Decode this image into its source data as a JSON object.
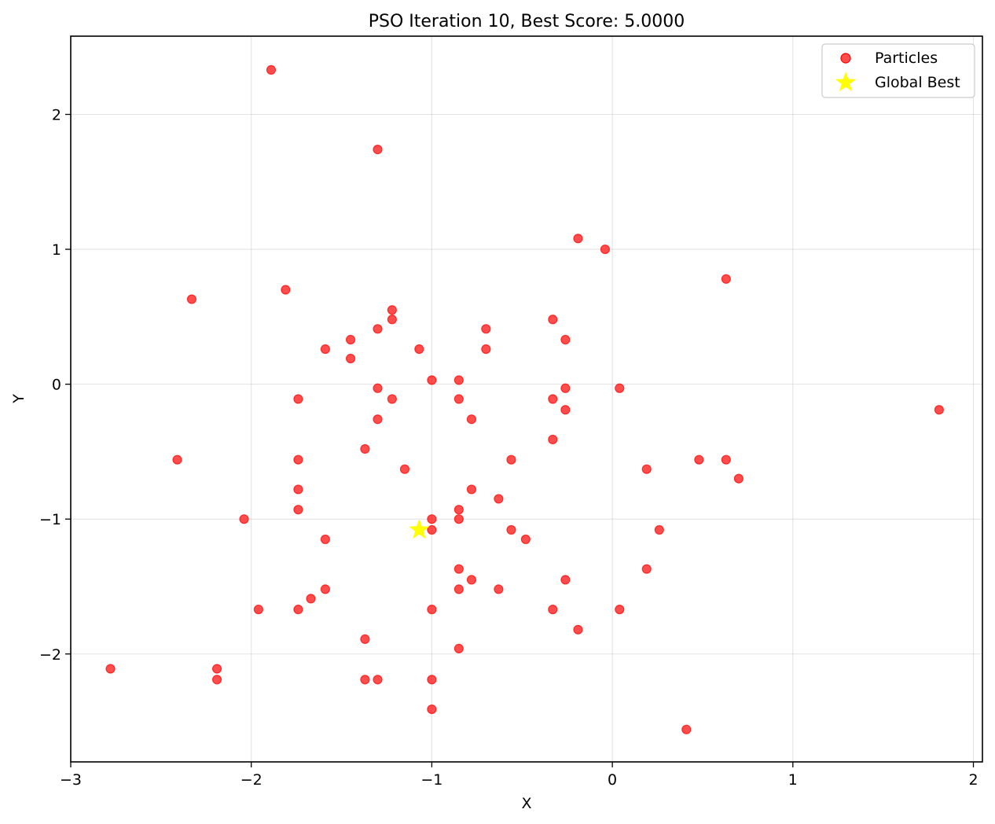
{
  "chart_data": {
    "type": "scatter",
    "title": "PSO Iteration 10, Best Score: 5.0000",
    "xlabel": "X",
    "ylabel": "Y",
    "xlim": [
      -3.0,
      2.05
    ],
    "ylim": [
      -2.8,
      2.58
    ],
    "xticks": [
      -3,
      -2,
      -1,
      0,
      1,
      2
    ],
    "yticks": [
      -2,
      -1,
      0,
      1,
      2
    ],
    "xtick_labels": [
      "−3",
      "−2",
      "−1",
      "0",
      "1",
      "2"
    ],
    "ytick_labels": [
      "−2",
      "−1",
      "0",
      "1",
      "2"
    ],
    "grid": true,
    "legend_position": "top-right",
    "colors": {
      "particles": "#ff0000",
      "global_best": "#ffff00"
    },
    "series": [
      {
        "name": "Particles",
        "marker": "circle",
        "points": [
          [
            -1.89,
            2.33
          ],
          [
            -1.3,
            1.74
          ],
          [
            -0.19,
            1.08
          ],
          [
            -0.04,
            1.0
          ],
          [
            0.63,
            0.78
          ],
          [
            -2.33,
            0.63
          ],
          [
            -1.81,
            0.7
          ],
          [
            -1.22,
            0.55
          ],
          [
            -1.22,
            0.48
          ],
          [
            -1.3,
            0.41
          ],
          [
            -1.45,
            0.33
          ],
          [
            -1.59,
            0.26
          ],
          [
            -1.45,
            0.19
          ],
          [
            -1.07,
            0.26
          ],
          [
            -0.7,
            0.41
          ],
          [
            -0.7,
            0.26
          ],
          [
            -0.33,
            0.48
          ],
          [
            -0.26,
            0.33
          ],
          [
            -1.0,
            0.03
          ],
          [
            -0.85,
            0.03
          ],
          [
            -1.3,
            -0.03
          ],
          [
            -1.22,
            -0.11
          ],
          [
            -1.3,
            -0.26
          ],
          [
            -1.74,
            -0.11
          ],
          [
            -0.85,
            -0.11
          ],
          [
            -0.78,
            -0.26
          ],
          [
            -0.33,
            -0.11
          ],
          [
            -0.26,
            -0.03
          ],
          [
            -0.26,
            -0.19
          ],
          [
            0.04,
            -0.03
          ],
          [
            1.81,
            -0.19
          ],
          [
            -0.33,
            -0.41
          ],
          [
            -0.56,
            -0.56
          ],
          [
            -1.15,
            -0.63
          ],
          [
            -1.37,
            -0.48
          ],
          [
            -1.74,
            -0.56
          ],
          [
            -2.41,
            -0.56
          ],
          [
            -1.74,
            -0.78
          ],
          [
            -1.74,
            -0.93
          ],
          [
            -2.04,
            -1.0
          ],
          [
            -1.59,
            -1.15
          ],
          [
            -0.78,
            -0.78
          ],
          [
            -0.63,
            -0.85
          ],
          [
            -0.85,
            -0.93
          ],
          [
            -0.85,
            -1.0
          ],
          [
            -1.0,
            -1.0
          ],
          [
            -1.0,
            -1.08
          ],
          [
            -0.56,
            -1.08
          ],
          [
            -0.48,
            -1.15
          ],
          [
            0.19,
            -0.63
          ],
          [
            0.48,
            -0.56
          ],
          [
            0.63,
            -0.56
          ],
          [
            0.7,
            -0.7
          ],
          [
            0.26,
            -1.08
          ],
          [
            0.19,
            -1.37
          ],
          [
            -0.85,
            -1.37
          ],
          [
            -0.85,
            -1.52
          ],
          [
            -0.78,
            -1.45
          ],
          [
            -0.63,
            -1.52
          ],
          [
            -0.26,
            -1.45
          ],
          [
            -1.59,
            -1.52
          ],
          [
            -1.67,
            -1.59
          ],
          [
            -1.74,
            -1.67
          ],
          [
            -1.96,
            -1.67
          ],
          [
            -1.0,
            -1.67
          ],
          [
            -0.33,
            -1.67
          ],
          [
            0.04,
            -1.67
          ],
          [
            -0.19,
            -1.82
          ],
          [
            -1.37,
            -1.89
          ],
          [
            -0.85,
            -1.96
          ],
          [
            -2.78,
            -2.11
          ],
          [
            -2.19,
            -2.11
          ],
          [
            -2.19,
            -2.19
          ],
          [
            -1.37,
            -2.19
          ],
          [
            -1.3,
            -2.19
          ],
          [
            -1.0,
            -2.19
          ],
          [
            -1.0,
            -2.41
          ],
          [
            0.41,
            -2.56
          ]
        ]
      },
      {
        "name": "Global Best",
        "marker": "star",
        "points": [
          [
            -1.07,
            -1.08
          ]
        ]
      }
    ]
  }
}
